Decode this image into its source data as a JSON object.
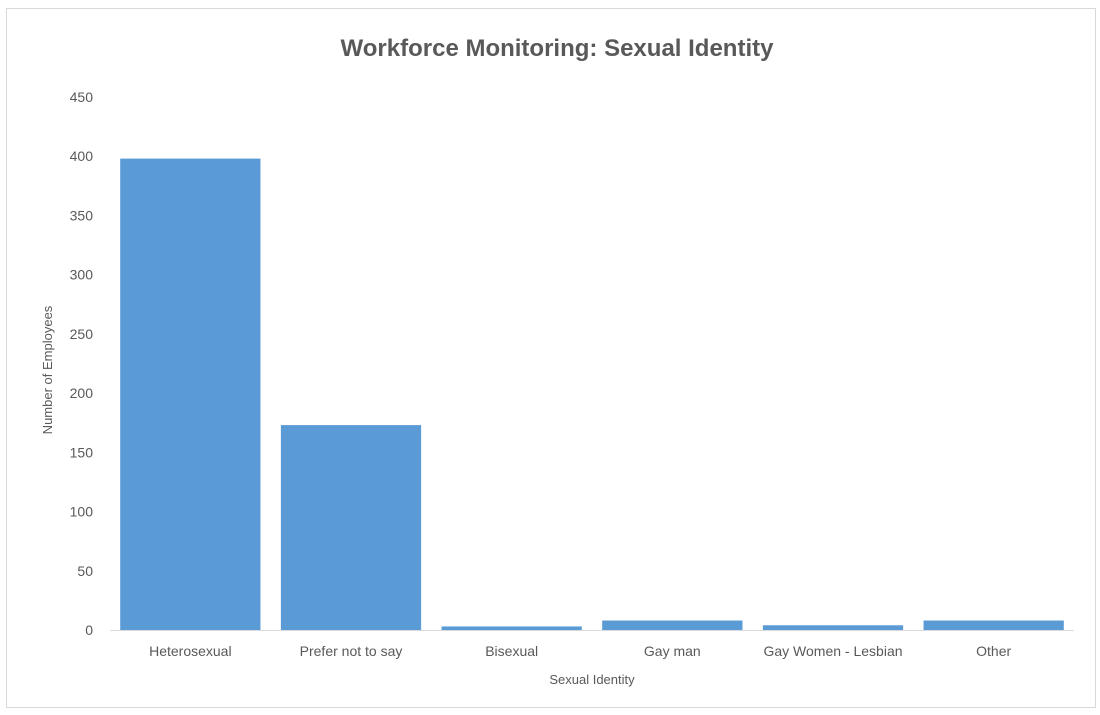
{
  "chart_data": {
    "type": "bar",
    "title": "Workforce Monitoring: Sexual Identity",
    "xlabel": "Sexual Identity",
    "ylabel": "Number of Employees",
    "categories": [
      "Heterosexual",
      "Prefer not to say",
      "Bisexual",
      "Gay man",
      "Gay Women - Lesbian",
      "Other"
    ],
    "values": [
      398,
      173,
      3,
      8,
      4,
      8
    ],
    "ylim": [
      0,
      450
    ],
    "yticks": [
      "0",
      "50",
      "100",
      "150",
      "200",
      "250",
      "300",
      "350",
      "400",
      "450"
    ],
    "bar_color": "#5b9bd5",
    "grid": false,
    "legend": "none"
  }
}
